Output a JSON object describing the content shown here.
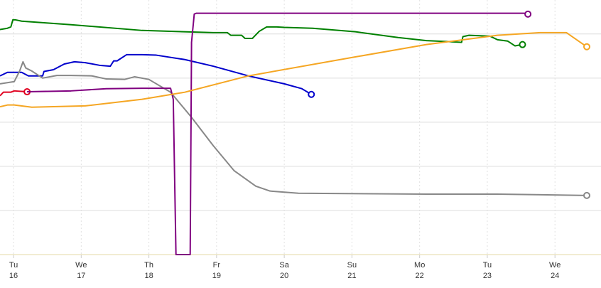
{
  "chart_data": {
    "type": "line",
    "xlim": [
      15.8,
      24.68
    ],
    "ylim": [
      0,
      5.77
    ],
    "xticks": [
      16,
      17,
      18,
      19,
      20,
      21,
      22,
      23,
      24
    ],
    "xtick_weekdays": [
      "Tu",
      "We",
      "Th",
      "Fr",
      "Sa",
      "Su",
      "Mo",
      "Tu",
      "We"
    ],
    "yticks": [
      0,
      1,
      2,
      3,
      4,
      5
    ],
    "grid": true,
    "series": [
      {
        "color": "#008000",
        "x": [
          15.8,
          15.91,
          15.96,
          15.99,
          16.03,
          16.12,
          16.85,
          17.9,
          18.95,
          19.16,
          19.21,
          19.37,
          19.42,
          19.53,
          19.63,
          19.74,
          19.89,
          20.0,
          20.42,
          21.05,
          21.68,
          22.1,
          22.52,
          22.62,
          22.64,
          22.73,
          23.04,
          23.15,
          23.3,
          23.41,
          23.52
        ],
        "values": [
          5.1,
          5.13,
          5.16,
          5.32,
          5.32,
          5.29,
          5.21,
          5.08,
          5.03,
          5.03,
          4.97,
          4.97,
          4.9,
          4.9,
          5.06,
          5.16,
          5.16,
          5.15,
          5.13,
          5.05,
          4.92,
          4.85,
          4.82,
          4.81,
          4.94,
          4.97,
          4.95,
          4.87,
          4.84,
          4.73,
          4.76
        ]
      },
      {
        "color": "#0000cc",
        "x": [
          15.8,
          15.91,
          16.12,
          16.22,
          16.43,
          16.45,
          16.59,
          16.75,
          16.9,
          17.06,
          17.27,
          17.43,
          17.48,
          17.53,
          17.67,
          17.9,
          18.11,
          18.53,
          18.95,
          19.47,
          20.0,
          20.26,
          20.4
        ],
        "values": [
          4.05,
          4.13,
          4.13,
          4.05,
          4.05,
          4.15,
          4.19,
          4.32,
          4.37,
          4.35,
          4.29,
          4.27,
          4.39,
          4.39,
          4.53,
          4.53,
          4.52,
          4.42,
          4.27,
          4.05,
          3.87,
          3.76,
          3.63
        ]
      },
      {
        "color": "#888888",
        "x": [
          15.8,
          16.01,
          16.09,
          16.14,
          16.18,
          16.27,
          16.43,
          16.64,
          16.85,
          17.16,
          17.37,
          17.64,
          17.79,
          18.0,
          18.32,
          18.63,
          18.95,
          19.26,
          19.58,
          19.79,
          20.21,
          22.1,
          23.15,
          24.47
        ],
        "values": [
          3.87,
          3.92,
          4.16,
          4.37,
          4.23,
          4.16,
          4.0,
          4.06,
          4.06,
          4.05,
          3.98,
          3.97,
          4.03,
          3.97,
          3.68,
          3.11,
          2.47,
          1.9,
          1.55,
          1.44,
          1.39,
          1.37,
          1.37,
          1.34
        ]
      },
      {
        "color": "#e00020",
        "x": [
          15.8,
          15.85,
          15.96,
          16.01,
          16.2
        ],
        "values": [
          3.6,
          3.68,
          3.68,
          3.71,
          3.69
        ]
      },
      {
        "color": "#800080",
        "x": [
          16.2,
          16.85,
          17.37,
          17.9,
          18.32,
          18.36,
          18.4,
          18.61,
          18.63,
          18.67,
          18.7,
          23.57,
          23.6
        ],
        "values": [
          3.69,
          3.71,
          3.76,
          3.77,
          3.77,
          3.52,
          0,
          0,
          4.81,
          5.45,
          5.47,
          5.47,
          5.45
        ]
      },
      {
        "color": "#f5a623",
        "x": [
          15.8,
          15.91,
          16.01,
          16.27,
          17.06,
          17.9,
          18.53,
          19.47,
          21.05,
          22.1,
          23.15,
          23.78,
          24.17,
          24.3,
          24.47
        ],
        "values": [
          3.35,
          3.39,
          3.39,
          3.34,
          3.37,
          3.52,
          3.68,
          4.05,
          4.48,
          4.76,
          4.97,
          5.03,
          5.03,
          4.89,
          4.71
        ]
      }
    ]
  }
}
